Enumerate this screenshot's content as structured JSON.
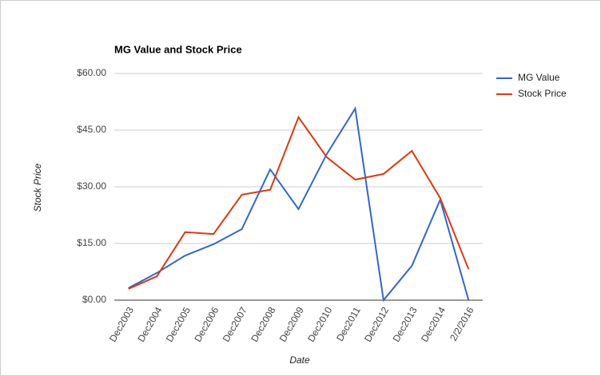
{
  "chart_data": {
    "type": "line",
    "title": "MG Value and Stock Price",
    "x_label": "Date",
    "y_label": "Stock Price",
    "categories": [
      "Dec2003",
      "Dec2004",
      "Dec2005",
      "Dec2006",
      "Dec2007",
      "Dec2008",
      "Dec2009",
      "Dec2010",
      "Dec2011",
      "Dec2012",
      "Dec2013",
      "Dec2014",
      "2/2/2016"
    ],
    "series": [
      {
        "name": "MG Value",
        "color": "#3366cc",
        "values": [
          3.2,
          7.2,
          11.8,
          14.8,
          18.8,
          34.6,
          24.1,
          38.7,
          50.7,
          0,
          9.1,
          26.6,
          0
        ]
      },
      {
        "name": "Stock Price",
        "color": "#dc3912",
        "values": [
          3.0,
          6.3,
          18.0,
          17.5,
          27.9,
          29.2,
          48.4,
          37.8,
          31.9,
          33.4,
          39.5,
          27.0,
          8.2
        ]
      }
    ],
    "ylim": [
      0,
      60
    ],
    "yticks": [
      {
        "value": 0,
        "label": "$0.00"
      },
      {
        "value": 15,
        "label": "$15.00"
      },
      {
        "value": 30,
        "label": "$30.00"
      },
      {
        "value": 45,
        "label": "$45.00"
      },
      {
        "value": 60,
        "label": "$60.00"
      }
    ],
    "grid": true,
    "legend": "right"
  }
}
